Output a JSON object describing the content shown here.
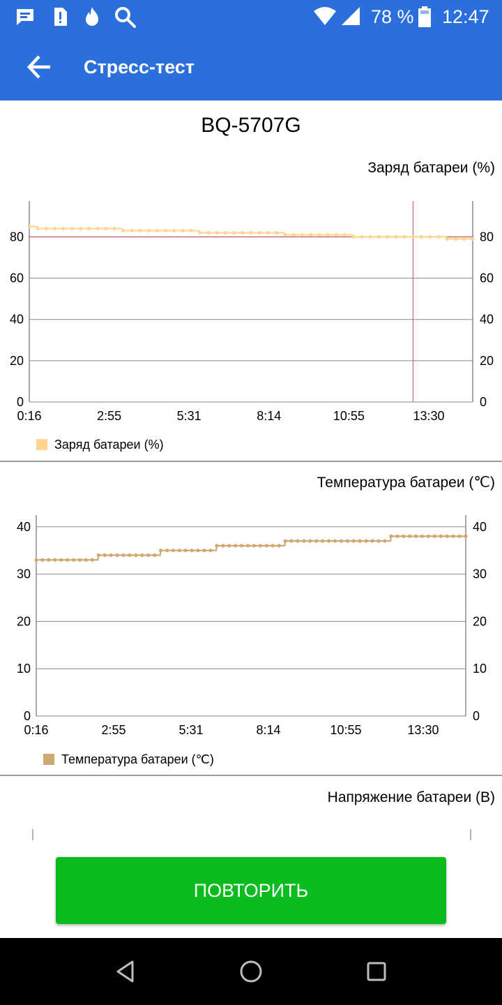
{
  "status_bar": {
    "battery_percent": "78 %",
    "time": "12:47",
    "icons": [
      "message-icon",
      "sim-alert-icon",
      "flame-icon",
      "search-icon",
      "wifi-icon",
      "signal-icon",
      "battery-icon"
    ]
  },
  "app_bar": {
    "title": "Стресс-тест",
    "back_icon": "arrow-left-icon"
  },
  "device_name": "BQ-5707G",
  "charts": {
    "battery_charge": {
      "title": "Заряд батареи (%)",
      "legend": "Заряд батареи (%)",
      "color": "#ffd591",
      "marker_line_color": "#c94a4a"
    },
    "battery_temp": {
      "title": "Температура батареи (℃)",
      "legend": "Температура батареи (℃)",
      "color": "#cfa971"
    },
    "battery_voltage": {
      "title": "Напряжение батареи (В)"
    }
  },
  "chart_data": [
    {
      "type": "line",
      "title": "Заряд батареи (%)",
      "x_ticks": [
        "0:16",
        "2:55",
        "5:31",
        "8:14",
        "10:55",
        "13:30"
      ],
      "y_ticks": [
        0,
        20,
        40,
        60,
        80
      ],
      "ylim": [
        0,
        94
      ],
      "grid": true,
      "legend_placement": "bottom-left",
      "marker_y": 80,
      "marker_x_index": 45,
      "series": [
        {
          "name": "Заряд батареи (%)",
          "values": [
            85,
            84,
            84,
            84,
            84,
            84,
            84,
            84,
            84,
            84,
            84,
            83,
            83,
            83,
            83,
            83,
            83,
            83,
            83,
            83,
            82,
            82,
            82,
            82,
            82,
            82,
            82,
            82,
            82,
            82,
            81,
            81,
            81,
            81,
            81,
            81,
            81,
            81,
            80,
            80,
            80,
            80,
            80,
            80,
            80,
            80,
            80,
            80,
            80,
            79,
            79,
            79,
            79
          ]
        }
      ]
    },
    {
      "type": "line",
      "title": "Температура батареи (℃)",
      "x_ticks": [
        "0:16",
        "2:55",
        "5:31",
        "8:14",
        "10:55",
        "13:30"
      ],
      "y_ticks": [
        0,
        10,
        20,
        30,
        40
      ],
      "ylim": [
        0,
        41
      ],
      "grid": true,
      "legend_placement": "bottom-left",
      "series": [
        {
          "name": "Температура батареи (℃)",
          "values": [
            33,
            33,
            33,
            33,
            33,
            33,
            33,
            33,
            33,
            33,
            34,
            34,
            34,
            34,
            34,
            34,
            34,
            34,
            34,
            34,
            35,
            35,
            35,
            35,
            35,
            35,
            35,
            35,
            35,
            36,
            36,
            36,
            36,
            36,
            36,
            36,
            36,
            36,
            36,
            36,
            37,
            37,
            37,
            37,
            37,
            37,
            37,
            37,
            37,
            37,
            37,
            37,
            37,
            37,
            37,
            37,
            37,
            38,
            38,
            38,
            38,
            38,
            38,
            38,
            38,
            38,
            38,
            38,
            38,
            38
          ]
        }
      ]
    },
    {
      "type": "line",
      "title": "Напряжение батареи (В)"
    }
  ],
  "repeat_button": {
    "label": "ПОВТОРИТЬ"
  },
  "nav_bar": {
    "icons": [
      "back-triangle-icon",
      "home-circle-icon",
      "recents-square-icon"
    ]
  }
}
